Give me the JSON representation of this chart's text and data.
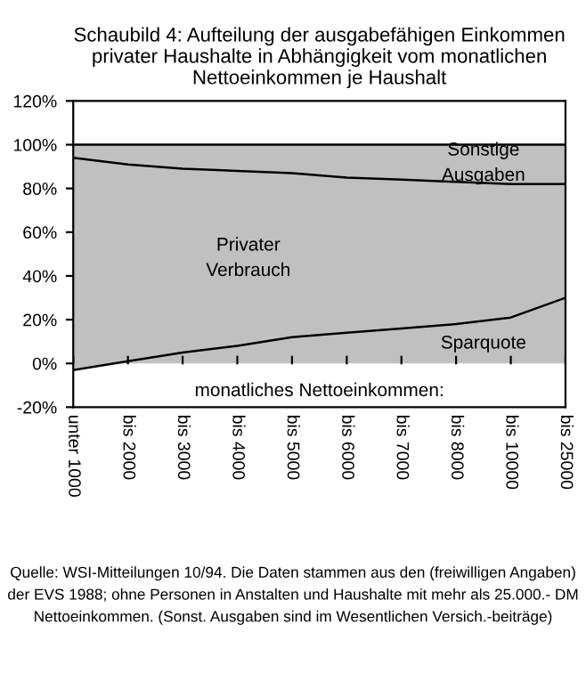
{
  "chart_data": {
    "type": "area",
    "stacked": true,
    "title": "Schaubild 4: Aufteilung der ausgabefähigen Einkommen privater Haushalte in Abhängigkeit vom monatlichen Nettoeinkommen je Haushalt",
    "xlabel": "monatliches Nettoeinkommen:",
    "categories": [
      "unter 1000",
      "bis 2000",
      "bis 3000",
      "bis 4000",
      "bis 5000",
      "bis 6000",
      "bis 7000",
      "bis 8000",
      "bis 10000",
      "bis 25000"
    ],
    "series": [
      {
        "name": "Sparquote",
        "color": "#c0c0c0",
        "values": [
          -3,
          1,
          5,
          8,
          12,
          14,
          16,
          18,
          21,
          30
        ]
      },
      {
        "name": "Privater Verbrauch",
        "color": "#c0c0c0",
        "values": [
          97,
          90,
          84,
          80,
          75,
          71,
          68,
          65,
          61,
          52
        ]
      },
      {
        "name": "Sonstige Ausgaben",
        "color": "#c0c0c0",
        "values": [
          6,
          9,
          11,
          12,
          13,
          15,
          16,
          17,
          18,
          18
        ]
      }
    ],
    "ylim": [
      -20,
      120
    ],
    "yticks": [
      {
        "value": -20,
        "label": "-20%"
      },
      {
        "value": 0,
        "label": "0%"
      },
      {
        "value": 20,
        "label": "20%"
      },
      {
        "value": 40,
        "label": "40%"
      },
      {
        "value": 60,
        "label": "60%"
      },
      {
        "value": 80,
        "label": "80%"
      },
      {
        "value": 100,
        "label": "100%"
      },
      {
        "value": 120,
        "label": "120%"
      }
    ],
    "grid": false,
    "legend": false,
    "annotations": [
      "Quelle: WSI-Mitteilungen 10/94. Die Daten stammen aus den (freiwilligen Angaben) der EVS 1988; ohne Personen in Anstalten und Haushalte mit mehr als 25.000.- DM Nettoeinkommen. (Sonst. Ausgaben sind im Wesentlichen Versich.-beiträge)"
    ]
  }
}
